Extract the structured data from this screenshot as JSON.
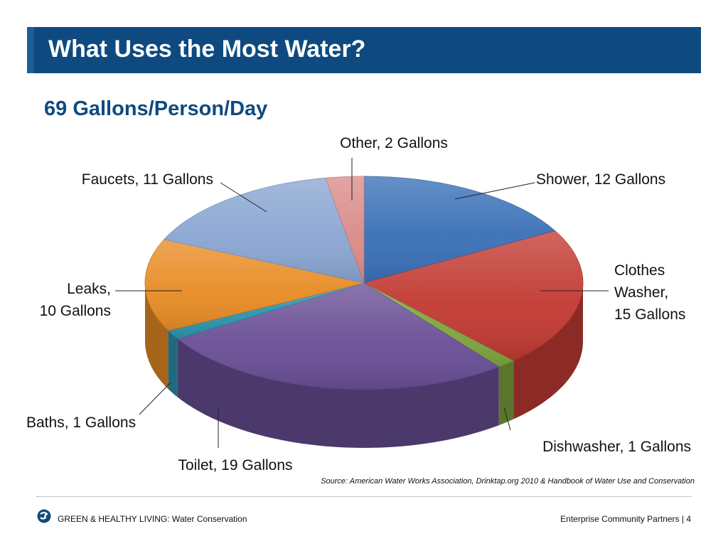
{
  "slide": {
    "title": "What Uses the Most Water?",
    "subtitle": "69 Gallons/Person/Day",
    "source": "Source: American Water Works Association, Drinktap.org 2010 & Handbook of Water Use and Conservation",
    "footer_left": "GREEN & HEALTHY LIVING: Water Conservation",
    "footer_right": "Enterprise Community Partners | 4",
    "logo_icon": "enterprise-logo-icon",
    "colors": {
      "title_bar": "#0e4a80",
      "subtitle": "#0e4a80"
    }
  },
  "chart_data": {
    "type": "pie",
    "title": "69 Gallons/Person/Day",
    "unit": "Gallons",
    "slices": [
      {
        "name": "Shower",
        "value": 12,
        "color": "#3a70b8",
        "label_lines": [
          "Shower, 12 Gallons"
        ]
      },
      {
        "name": "Clothes Washer",
        "value": 15,
        "color": "#c23a33",
        "label_lines": [
          "Clothes",
          "Washer,",
          "15 Gallons"
        ]
      },
      {
        "name": "Dishwasher",
        "value": 1,
        "color": "#7fa33e",
        "label_lines": [
          "Dishwasher, 1 Gallons"
        ]
      },
      {
        "name": "Toilet",
        "value": 19,
        "color": "#6a4f96",
        "label_lines": [
          "Toilet, 19 Gallons"
        ]
      },
      {
        "name": "Baths",
        "value": 1,
        "color": "#2c93ad",
        "label_lines": [
          "Baths, 1 Gallons"
        ]
      },
      {
        "name": "Leaks",
        "value": 10,
        "color": "#e88c26",
        "label_lines": [
          "Leaks,",
          "10 Gallons"
        ]
      },
      {
        "name": "Faucets",
        "value": 11,
        "color": "#8aa6d2",
        "label_lines": [
          "Faucets, 11 Gallons"
        ]
      },
      {
        "name": "Other",
        "value": 2,
        "color": "#d98c89",
        "label_lines": [
          "Other, 2 Gallons"
        ]
      }
    ]
  }
}
